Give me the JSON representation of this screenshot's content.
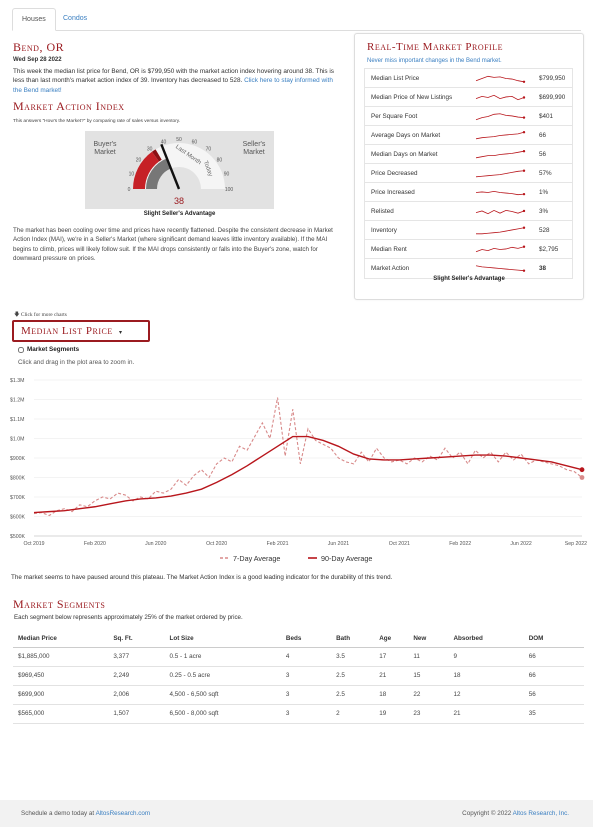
{
  "tabs": [
    {
      "label": "Houses",
      "active": true
    },
    {
      "label": "Condos",
      "active": false
    }
  ],
  "city": "Bend, OR",
  "date": "Wed Sep 28 2022",
  "intro": {
    "text": "This week the median list price for Bend, OR is $799,950 with the market action index hovering around 38. This is less than last month's market action index of 39. Inventory has decreased to 528.",
    "link": "Click here to stay informed with the Bend market!"
  },
  "mai": {
    "title": "Market Action Index",
    "subtitle": "This answers “How's the Market?” by comparing rate of sales versus inventory.",
    "value": 38,
    "value_label": "38",
    "buyers_label_1": "Buyer's",
    "buyers_label_2": "Market",
    "sellers_label_1": "Seller's",
    "sellers_label_2": "Market",
    "last_month_label": "Last Month",
    "today_label": "Today",
    "ticks": [
      "0",
      "10",
      "20",
      "30",
      "40",
      "50",
      "60",
      "70",
      "80",
      "90",
      "100"
    ],
    "status": "Slight Seller's Advantage"
  },
  "paragraph": "The market has been cooling over time and prices have recently flattened. Despite the consistent decrease in Market Action Index (MAI), we're in a Seller's Market (where significant demand leaves little inventory available). If the MAI begins to climb, prices will likely follow suit. If the MAI drops consistently or falls into the Buyer's zone, watch for downward pressure on prices.",
  "profile": {
    "title": "Real-Time Market Profile",
    "subtitle": "Never miss important changes in the Bend market.",
    "rows": [
      {
        "label": "Median List Price",
        "value": "$799,950",
        "spark": [
          0.3,
          0.5,
          0.7,
          0.6,
          0.65,
          0.5,
          0.45,
          0.3,
          0.2
        ]
      },
      {
        "label": "Median Price of New Listings",
        "value": "$699,990",
        "spark": [
          0.4,
          0.6,
          0.5,
          0.7,
          0.4,
          0.55,
          0.6,
          0.3,
          0.5
        ]
      },
      {
        "label": "Per Square Foot",
        "value": "$401",
        "spark": [
          0.2,
          0.4,
          0.5,
          0.7,
          0.75,
          0.6,
          0.55,
          0.45,
          0.4
        ]
      },
      {
        "label": "Average Days on Market",
        "value": "66",
        "spark": [
          0.2,
          0.3,
          0.35,
          0.4,
          0.5,
          0.55,
          0.6,
          0.65,
          0.8
        ]
      },
      {
        "label": "Median Days on Market",
        "value": "56",
        "spark": [
          0.2,
          0.3,
          0.4,
          0.4,
          0.5,
          0.55,
          0.6,
          0.7,
          0.8
        ]
      },
      {
        "label": "Price Decreased",
        "value": "57%",
        "spark": [
          0.2,
          0.25,
          0.3,
          0.35,
          0.4,
          0.5,
          0.6,
          0.7,
          0.75
        ]
      },
      {
        "label": "Price Increased",
        "value": "1%",
        "spark": [
          0.5,
          0.55,
          0.5,
          0.6,
          0.5,
          0.45,
          0.4,
          0.3,
          0.35
        ]
      },
      {
        "label": "Relisted",
        "value": "3%",
        "spark": [
          0.4,
          0.55,
          0.3,
          0.6,
          0.35,
          0.6,
          0.5,
          0.35,
          0.55
        ]
      },
      {
        "label": "Inventory",
        "value": "528",
        "spark": [
          0.2,
          0.2,
          0.25,
          0.3,
          0.35,
          0.45,
          0.55,
          0.65,
          0.75
        ]
      },
      {
        "label": "Median Rent",
        "value": "$2,795",
        "spark": [
          0.3,
          0.5,
          0.4,
          0.6,
          0.5,
          0.55,
          0.7,
          0.6,
          0.75
        ]
      },
      {
        "label": "Market Action",
        "value": "38",
        "bold": true,
        "spark": [
          0.75,
          0.65,
          0.6,
          0.55,
          0.5,
          0.45,
          0.4,
          0.35,
          0.3
        ]
      }
    ],
    "footer": "Slight Seller's Advantage"
  },
  "more_charts": "Click for more charts",
  "dropdown_label": "Median List Price",
  "segments_checkbox": "Market Segments",
  "zoom_hint": "Click and drag in the plot area to zoom in.",
  "chart_note": "The market seems to have paused around this plateau. The Market Action Index is a good leading indicator for the durability of this trend.",
  "chart_data": {
    "type": "line",
    "title": "",
    "xlabel": "",
    "ylabel": "",
    "x_ticks": [
      "Oct 2019",
      "Feb 2020",
      "Jun 2020",
      "Oct 2020",
      "Feb 2021",
      "Jun 2021",
      "Oct 2021",
      "Feb 2022",
      "Jun 2022",
      "Sep 2022"
    ],
    "y_ticks": [
      "$500K",
      "$600K",
      "$700K",
      "$800K",
      "$900K",
      "$1.0M",
      "$1.1M",
      "$1.2M",
      "$1.3M"
    ],
    "ylim": [
      500000,
      1300000
    ],
    "xlim": [
      0,
      36
    ],
    "grid": true,
    "legend_position": "bottom",
    "colors": {
      "series7": "#d88a8a",
      "series90": "#b8161c"
    },
    "series": [
      {
        "name": "7-Day Average",
        "dashed": true,
        "x": [
          0,
          0.5,
          1,
          1.5,
          2,
          2.5,
          3,
          3.5,
          4,
          4.5,
          5,
          5.5,
          6,
          6.5,
          7,
          7.5,
          8,
          8.5,
          9,
          9.5,
          10,
          10.5,
          11,
          11.5,
          12,
          12.5,
          13,
          13.5,
          14,
          14.5,
          15,
          15.5,
          16,
          16.5,
          17,
          17.5,
          18,
          18.5,
          19,
          19.5,
          20,
          20.5,
          21,
          21.5,
          22,
          22.5,
          23,
          23.5,
          24,
          24.5,
          25,
          25.5,
          26,
          26.5,
          27,
          27.5,
          28,
          28.5,
          29,
          29.5,
          30,
          30.5,
          31,
          31.5,
          32,
          32.5,
          33,
          33.5,
          34,
          34.5,
          35,
          35.5,
          36
        ],
        "y": [
          615000,
          620000,
          605000,
          630000,
          640000,
          625000,
          660000,
          650000,
          680000,
          700000,
          690000,
          720000,
          710000,
          680000,
          700000,
          690000,
          730000,
          720000,
          740000,
          790000,
          760000,
          810000,
          840000,
          800000,
          870000,
          900000,
          880000,
          960000,
          940000,
          1010000,
          1080000,
          1000000,
          1210000,
          910000,
          1150000,
          870000,
          1050000,
          990000,
          970000,
          950000,
          900000,
          880000,
          870000,
          930000,
          880000,
          950000,
          900000,
          880000,
          890000,
          870000,
          900000,
          880000,
          910000,
          890000,
          950000,
          900000,
          930000,
          870000,
          940000,
          900000,
          930000,
          880000,
          930000,
          890000,
          920000,
          870000,
          890000,
          880000,
          870000,
          860000,
          840000,
          830000,
          800000
        ]
      },
      {
        "name": "90-Day Average",
        "dashed": false,
        "x": [
          0,
          1,
          2,
          3,
          4,
          5,
          6,
          7,
          8,
          9,
          10,
          11,
          12,
          13,
          14,
          15,
          16,
          17,
          18,
          19,
          20,
          21,
          22,
          23,
          24,
          25,
          26,
          27,
          28,
          29,
          30,
          31,
          32,
          33,
          34,
          35,
          36
        ],
        "y": [
          620000,
          625000,
          630000,
          640000,
          650000,
          665000,
          680000,
          690000,
          695000,
          705000,
          720000,
          740000,
          775000,
          815000,
          860000,
          910000,
          960000,
          1010000,
          1010000,
          990000,
          960000,
          920000,
          895000,
          890000,
          890000,
          895000,
          900000,
          905000,
          910000,
          915000,
          915000,
          910000,
          900000,
          890000,
          880000,
          860000,
          840000
        ]
      }
    ]
  },
  "market_segments": {
    "title": "Market Segments",
    "subtitle": "Each segment below represents approximately 25% of the market ordered by price.",
    "headers": [
      "Median Price",
      "Sq. Ft.",
      "Lot Size",
      "Beds",
      "Bath",
      "Age",
      "New",
      "Absorbed",
      "DOM"
    ],
    "rows": [
      [
        "$1,885,000",
        "3,377",
        "0.5 - 1 acre",
        "4",
        "3.5",
        "17",
        "11",
        "9",
        "66"
      ],
      [
        "$969,450",
        "2,249",
        "0.25 - 0.5 acre",
        "3",
        "2.5",
        "21",
        "15",
        "18",
        "66"
      ],
      [
        "$699,900",
        "2,006",
        "4,500 - 6,500 sqft",
        "3",
        "2.5",
        "18",
        "22",
        "12",
        "56"
      ],
      [
        "$565,000",
        "1,507",
        "6,500 - 8,000 sqft",
        "3",
        "2",
        "19",
        "23",
        "21",
        "35"
      ]
    ]
  },
  "footer": {
    "left_text": "Schedule a demo today at ",
    "left_link": "AltosResearch.com",
    "right_text": "Copyright © 2022 ",
    "right_link": "Altos Research, Inc."
  }
}
